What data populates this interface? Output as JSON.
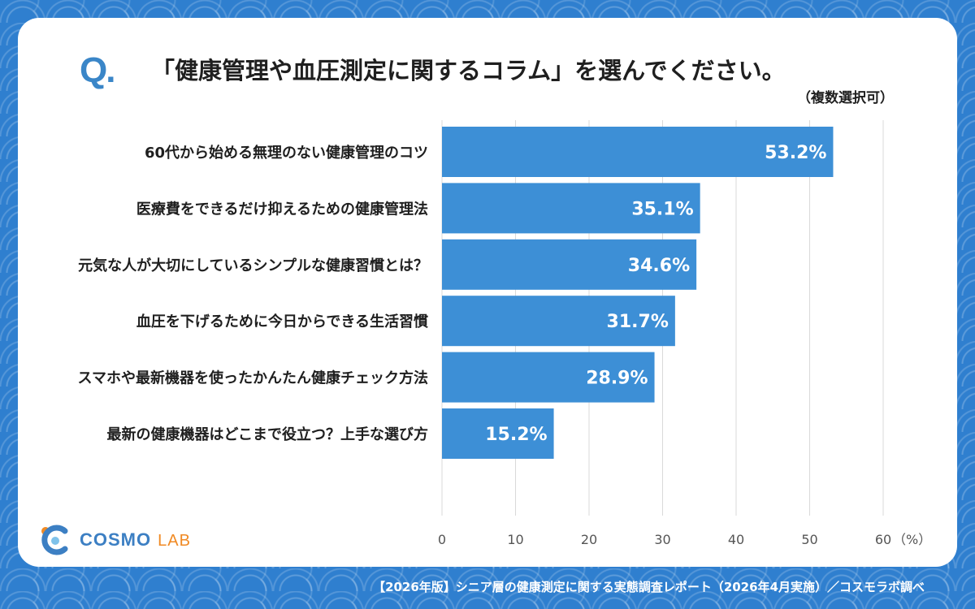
{
  "header": {
    "q_mark": "Q.",
    "title": "「健康管理や血圧測定に関するコラム」を選んでください。",
    "subtitle": "（複数選択可）"
  },
  "chart_data": {
    "type": "bar",
    "orientation": "horizontal",
    "categories": [
      "60代から始める無理のない健康管理のコツ",
      "医療費をできるだけ抑えるための健康管理法",
      "元気な人が大切にしているシンプルな健康習慣とは？",
      "血圧を下げるために今日からできる生活習慣",
      "スマホや最新機器を使ったかんたん健康チェック方法",
      "最新の健康機器はどこまで役立つ？上手な選び方"
    ],
    "values": [
      53.2,
      35.1,
      34.6,
      31.7,
      28.9,
      15.2
    ],
    "value_labels": [
      "53.2%",
      "35.1%",
      "34.6%",
      "31.7%",
      "28.9%",
      "15.2%"
    ],
    "xlim": [
      0,
      60
    ],
    "ticks": [
      0,
      10,
      20,
      30,
      40,
      50,
      60
    ],
    "tick_labels": [
      "0",
      "10",
      "20",
      "30",
      "40",
      "50",
      "60"
    ],
    "unit_label": "（%）",
    "grid": true,
    "bar_color": "#3d8fd6"
  },
  "logo": {
    "text": "COSMO",
    "text2": "LAB"
  },
  "footer": {
    "source": "【2026年版】シニア層の健康測定に関する実態調査レポート（2026年4月実施）／コスモラボ調べ"
  }
}
